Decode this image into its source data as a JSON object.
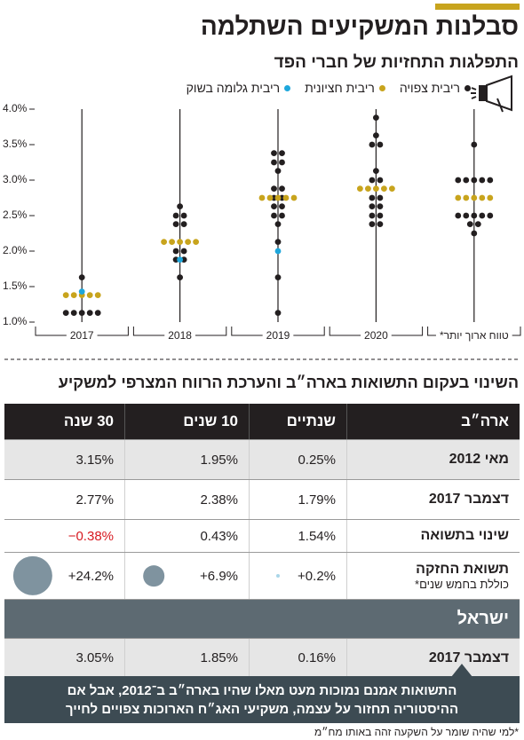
{
  "header": {
    "title": "סבלנות המשקיעים השתלמה"
  },
  "chart_data": {
    "type": "dot",
    "subtitle": "התפלגות התחזיות של חברי הפד",
    "categories": [
      "2017",
      "2018",
      "2019",
      "2020",
      "טווח ארוך יותר*"
    ],
    "series": [
      {
        "name": "ריבית צפויה",
        "color": "#231f20",
        "values": [
          [
            1.63,
            1.13,
            1.13,
            1.13,
            1.13,
            1.13
          ],
          [
            2.63,
            2.5,
            2.5,
            2.38,
            2.38,
            2.0,
            2.0,
            1.88,
            1.88,
            1.63
          ],
          [
            3.38,
            3.38,
            3.25,
            3.25,
            3.13,
            2.88,
            2.88,
            2.75,
            2.75,
            2.63,
            2.63,
            2.5,
            2.5,
            2.38,
            2.13,
            1.63,
            1.13
          ],
          [
            3.88,
            3.63,
            3.5,
            3.5,
            3.13,
            3.0,
            3.0,
            2.75,
            2.75,
            2.63,
            2.63,
            2.5,
            2.5,
            2.38,
            2.38
          ],
          [
            3.5,
            3.0,
            3.0,
            3.0,
            3.0,
            3.0,
            2.5,
            2.5,
            2.5,
            2.5,
            2.5,
            2.38,
            2.38,
            2.25
          ]
        ]
      },
      {
        "name": "ריבית חציונית",
        "color": "#c8a41d",
        "values": [
          1.38,
          2.13,
          2.75,
          2.88,
          2.75
        ]
      },
      {
        "name": "ריבית גלומה בשוק",
        "color": "#1ea7dc",
        "values": [
          1.43,
          1.88,
          2.0,
          null,
          null
        ]
      }
    ],
    "ylim": [
      1,
      4
    ],
    "yticks": [
      {
        "value": 1,
        "label": "1.0%"
      },
      {
        "value": 1.5,
        "label": "1.5%"
      },
      {
        "value": 2,
        "label": "2.0%"
      },
      {
        "value": 2.5,
        "label": "2.5%"
      },
      {
        "value": 3,
        "label": "3.0%"
      },
      {
        "value": 3.5,
        "label": "3.5%"
      },
      {
        "value": 4,
        "label": "4.0%"
      }
    ]
  },
  "table": {
    "title": "השינוי בעקום התשואות בארה״ב והערכת הרווח המצרפי למשקיע",
    "header": [
      "ארה״ב",
      "שנתיים",
      "10 שנים",
      "30 שנה"
    ],
    "rows": [
      [
        "מאי 2012",
        "0.25%",
        "1.95%",
        "3.15%"
      ],
      [
        "דצמבר 2017",
        "1.79%",
        "2.38%",
        "2.77%"
      ],
      [
        "שינוי בתשואה",
        "1.54%",
        "0.43%",
        "−0.38%"
      ]
    ],
    "holding_return": {
      "label": "תשואת החזקה",
      "note": "כוללת בחמש שנים*",
      "values": [
        0.2,
        6.9,
        24.2
      ],
      "value_labels": [
        "+0.2%",
        "+6.9%",
        "+24.2%"
      ]
    },
    "section": "ישראל",
    "israel_row": [
      "דצמבר 2017",
      "0.16%",
      "1.85%",
      "3.05%"
    ]
  },
  "callout": {
    "lines": [
      "התשואות אמנם נמוכות מעט מאלו שהיו בארה״ב ב־2012, אבל אם",
      "ההיסטוריה תחזור על עצמה, משקיעי האג״ח הארוכות צפויים לחייך"
    ]
  },
  "footnote": "*למי שהיה שומר על השקעה זהה באותו מח״מ"
}
